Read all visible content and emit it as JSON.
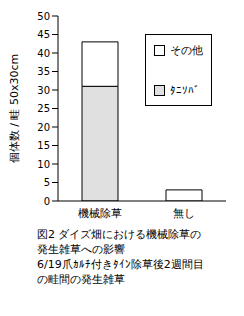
{
  "chart_data": {
    "type": "bar",
    "stacked": true,
    "title": "図2 ダイズ畑における機械除草の発生雑草への影響",
    "subtitle": "6/19爪ｶﾙﾁ付きﾀｲﾝ除草後2週間目の畦間の発生雑草",
    "y_label": "個体数 / 畦 50x30cm",
    "categories": [
      "機械除草",
      "無し"
    ],
    "series": [
      {
        "name": "ﾀﾆｿﾊﾞ",
        "color": "#e0e0e0",
        "values": [
          31,
          0
        ]
      },
      {
        "name": "その他",
        "color": "#ffffff",
        "values": [
          12,
          3
        ]
      }
    ],
    "ylim": [
      0,
      50
    ],
    "yticks": [
      0,
      5,
      10,
      15,
      20,
      25,
      30,
      35,
      40,
      45,
      50
    ],
    "grid": false,
    "legend": "upper right"
  }
}
